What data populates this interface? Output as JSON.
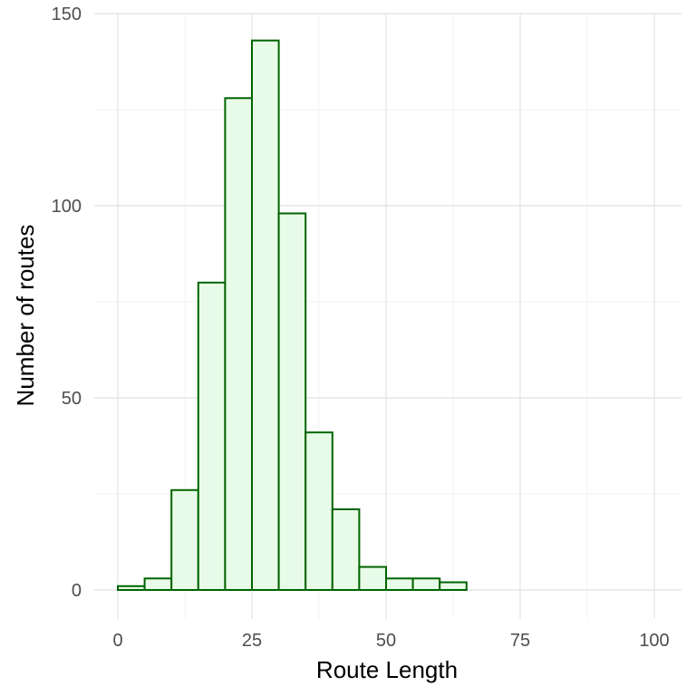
{
  "chart_data": {
    "type": "bar",
    "xlabel": "Route Length",
    "ylabel": "Number of routes",
    "xlim": [
      -4.5,
      104.5
    ],
    "ylim": [
      -7.5,
      150
    ],
    "x_ticks": [
      0,
      25,
      50,
      75,
      100
    ],
    "y_ticks": [
      0,
      50,
      100,
      150
    ],
    "x_minor_ticks": [
      12.5,
      37.5,
      62.5,
      87.5
    ],
    "y_minor_ticks": [
      25,
      75,
      125
    ],
    "grid": true,
    "bin_width": 5,
    "bins": [
      {
        "x0": 0,
        "x1": 5,
        "count": 1
      },
      {
        "x0": 5,
        "x1": 10,
        "count": 3
      },
      {
        "x0": 10,
        "x1": 15,
        "count": 26
      },
      {
        "x0": 15,
        "x1": 20,
        "count": 80
      },
      {
        "x0": 20,
        "x1": 25,
        "count": 128
      },
      {
        "x0": 25,
        "x1": 30,
        "count": 143
      },
      {
        "x0": 30,
        "x1": 35,
        "count": 98
      },
      {
        "x0": 35,
        "x1": 40,
        "count": 41
      },
      {
        "x0": 40,
        "x1": 45,
        "count": 21
      },
      {
        "x0": 45,
        "x1": 50,
        "count": 6
      },
      {
        "x0": 50,
        "x1": 55,
        "count": 3
      },
      {
        "x0": 55,
        "x1": 60,
        "count": 3
      },
      {
        "x0": 60,
        "x1": 65,
        "count": 2
      },
      {
        "x0": 65,
        "x1": 70,
        "count": 0
      },
      {
        "x0": 70,
        "x1": 75,
        "count": 0
      },
      {
        "x0": 75,
        "x1": 80,
        "count": 0
      },
      {
        "x0": 80,
        "x1": 85,
        "count": 0
      },
      {
        "x0": 85,
        "x1": 90,
        "count": 0
      },
      {
        "x0": 90,
        "x1": 95,
        "count": 0
      },
      {
        "x0": 95,
        "x1": 100,
        "count": 0
      }
    ],
    "colors": {
      "fill": "#e8fbe8",
      "outline": "#006400"
    }
  }
}
